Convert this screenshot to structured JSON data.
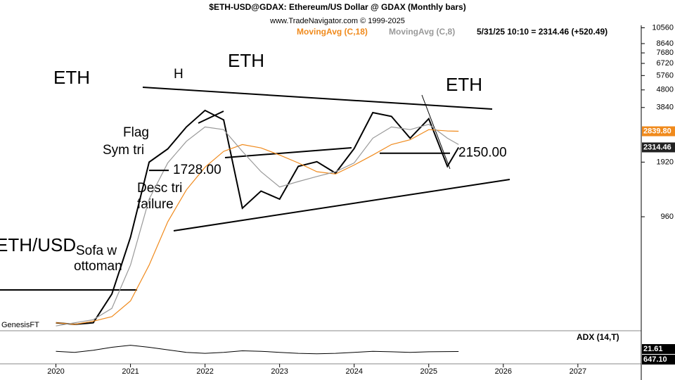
{
  "chart_data": {
    "type": "line",
    "title": "$ETH-USD@GDAX:  Ethereum/US Dollar @ GDAX  (Monthly bars)",
    "subtitle": "www.TradeNavigator.com © 1999-2025",
    "status": "5/31/25 10:10 = 2314.46 (+520.49)",
    "log_scale": true,
    "x": [
      2020.0,
      2020.25,
      2020.5,
      2020.75,
      2021.0,
      2021.25,
      2021.5,
      2021.75,
      2022.0,
      2022.25,
      2022.5,
      2022.75,
      2023.0,
      2023.25,
      2023.5,
      2023.75,
      2024.0,
      2024.25,
      2024.5,
      2024.75,
      2025.0,
      2025.25,
      2025.4
    ],
    "series": [
      {
        "name": "ETH",
        "color": "#000000",
        "values": [
          250,
          245,
          250,
          360,
          740,
          1920,
          2270,
          3000,
          3700,
          3280,
          1070,
          1330,
          1200,
          1820,
          1930,
          1670,
          2280,
          3600,
          3430,
          2600,
          3330,
          1820,
          2314.46
        ]
      },
      {
        "name": "MovingAvg (C,18)",
        "color": "#f08a1c",
        "values": [
          250,
          245,
          255,
          270,
          330,
          520,
          900,
          1350,
          1800,
          2200,
          2400,
          2300,
          2100,
          1900,
          1700,
          1650,
          1850,
          2100,
          2400,
          2550,
          2900,
          2850,
          2839.8
        ]
      },
      {
        "name": "MovingAvg (C,8)",
        "color": "#999999",
        "values": [
          240,
          250,
          260,
          300,
          520,
          1200,
          1900,
          2500,
          3000,
          2900,
          2200,
          1700,
          1400,
          1500,
          1600,
          1700,
          1900,
          2600,
          3000,
          2900,
          3100,
          2600,
          2400
        ]
      }
    ],
    "xlim": [
      2019.25,
      2027.85
    ],
    "xticks": [
      2020,
      2021,
      2022,
      2023,
      2024,
      2025,
      2026,
      2027
    ],
    "ylim": [
      230,
      10700
    ],
    "yticks": [
      960,
      1920,
      3840,
      4800,
      5760,
      6720,
      7680,
      8640,
      10560
    ],
    "markers": [
      {
        "value": 2839.8,
        "label": "2839.80",
        "color": "#f08a1c"
      },
      {
        "value": 2314.46,
        "label": "2314.46",
        "color": "#222222"
      }
    ],
    "levels": [
      {
        "value": 1728,
        "label": "1728.00"
      },
      {
        "value": 2150,
        "label": "2150.00"
      }
    ],
    "annotations": [
      "ETH",
      "H",
      "ETH",
      "ETH",
      "Flag",
      "Sym tri",
      "Desc tri",
      "failure",
      "ETH/USD",
      "Sofa w",
      "ottoman",
      "GenesisFT"
    ],
    "adx": {
      "label": "ADX (14,T)",
      "values": [
        22,
        20,
        24,
        30,
        34,
        30,
        25,
        20,
        18,
        20,
        23,
        22,
        20,
        18,
        17,
        18,
        20,
        22,
        21,
        20,
        21,
        21.5,
        21.61
      ],
      "ylim": [
        0,
        60
      ],
      "color": "#000000"
    },
    "readouts": [
      {
        "value": 21.61,
        "label": "21.61"
      },
      {
        "value": 647.1,
        "label": "647.10"
      }
    ]
  }
}
